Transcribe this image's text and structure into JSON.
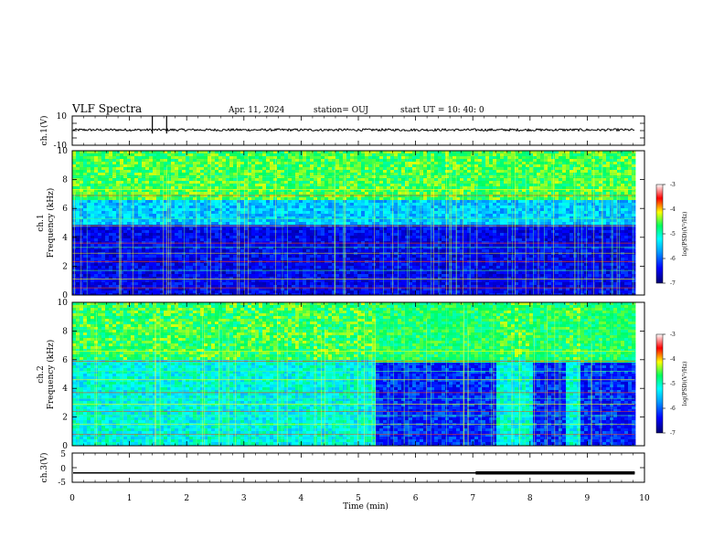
{
  "header": {
    "title": "VLF Spectra",
    "date": "Apr. 11, 2024",
    "station": "station= OUJ",
    "start": "start  UT  =  10: 40: 0"
  },
  "colors": {
    "spectrogram_low": "#00007a",
    "spectrogram_mid": "#00d0ff",
    "spectrogram_high": "#ff0000",
    "trace": "#000000"
  },
  "chart_data": [
    {
      "type": "line",
      "panel": "ch1-waveform",
      "ylabel": "ch.1(V)",
      "ylim": [
        -10,
        10
      ],
      "yticks": [
        10,
        -10
      ],
      "x_range_min": [
        0,
        9.83
      ],
      "baseline_v": 0.5,
      "spikes_min": [
        1.4,
        1.65
      ]
    },
    {
      "type": "heatmap",
      "panel": "ch1-spectrogram",
      "ylabel": "ch.1",
      "ylabel2": "Frequency (kHz)",
      "ylim": [
        0,
        10
      ],
      "yticks": [
        0,
        2,
        4,
        6,
        8,
        10
      ],
      "x_range_min": [
        0,
        9.83
      ],
      "colorbar": {
        "label": "log(PSD)(V²/Hz)",
        "range": [
          -7,
          -3
        ],
        "ticks": [
          -3,
          -4,
          -5,
          -6,
          -7
        ]
      }
    },
    {
      "type": "heatmap",
      "panel": "ch2-spectrogram",
      "ylabel": "ch.2",
      "ylabel2": "Frequency (kHz)",
      "ylim": [
        0,
        10
      ],
      "yticks": [
        0,
        2,
        4,
        6,
        8,
        10
      ],
      "x_range_min": [
        0,
        9.83
      ],
      "low_level_intervals_min": [
        [
          5.27,
          7.35
        ],
        [
          8.0,
          8.58
        ],
        [
          8.85,
          9.83
        ]
      ],
      "colorbar": {
        "label": "log(PSD)(V²/Hz)",
        "range": [
          -7,
          -3
        ],
        "ticks": [
          -3,
          -4,
          -5,
          -6,
          -7
        ]
      }
    },
    {
      "type": "line",
      "panel": "ch3-waveform",
      "ylabel": "ch.3(V)",
      "ylim": [
        -5,
        5
      ],
      "yticks": [
        5,
        0,
        -5
      ],
      "xlabel": "Time (min)",
      "xlim": [
        0,
        10
      ],
      "xticks": [
        0,
        1,
        2,
        3,
        4,
        5,
        6,
        7,
        8,
        9,
        10
      ],
      "level_v": -1.8,
      "thick_from_min": 7.05
    }
  ]
}
